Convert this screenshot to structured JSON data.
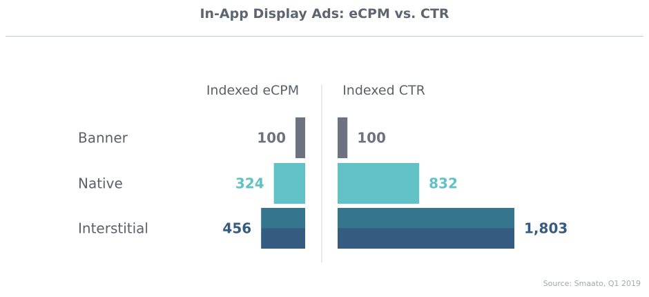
{
  "title": "In-App Display Ads: eCPM vs. CTR",
  "source": "Source: Smaato, Q1 2019",
  "colors": {
    "banner": "#6d7280",
    "native": "#62c1c6",
    "interstitial_top": "#35758e",
    "interstitial_bottom": "#355c80",
    "center_line": "#d0d4d8",
    "category_label": "#5b6069",
    "panel_header": "#5b6069"
  },
  "chart_data": {
    "type": "bar",
    "title": "In-App Display Ads: eCPM vs. CTR",
    "categories": [
      "Banner",
      "Native",
      "Interstitial"
    ],
    "series": [
      {
        "name": "Indexed eCPM",
        "values": [
          100,
          324,
          456
        ],
        "labels": [
          "100",
          "324",
          "456"
        ]
      },
      {
        "name": "Indexed CTR",
        "values": [
          100,
          832,
          1803
        ],
        "labels": [
          "100",
          "832",
          "1,803"
        ]
      }
    ]
  }
}
